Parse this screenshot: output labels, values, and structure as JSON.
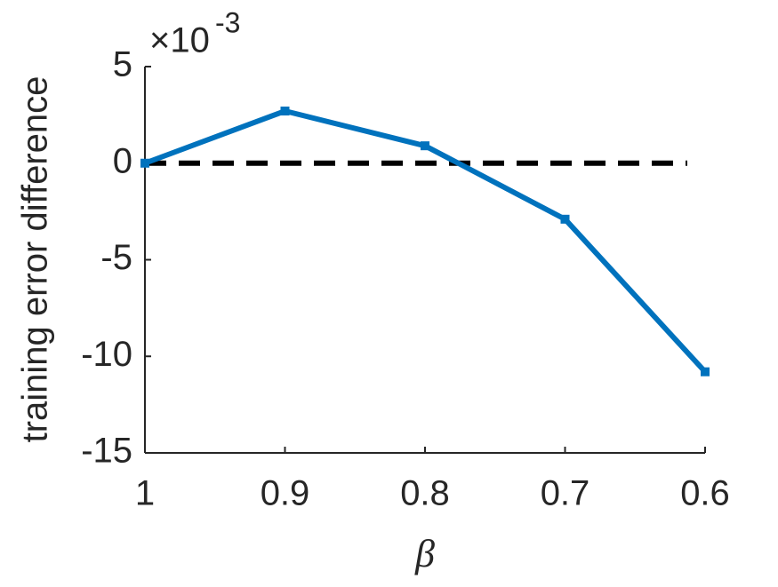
{
  "chart_data": {
    "type": "line",
    "x_label": "β",
    "y_label": "training error difference",
    "y_exponent_base": "×10",
    "y_exponent_power": "-3",
    "x": [
      1,
      0.9,
      0.8,
      0.7,
      0.6
    ],
    "series": [
      {
        "color": "#0072bd",
        "values": [
          0,
          2.7,
          0.9,
          -2.9,
          -10.8
        ]
      }
    ],
    "reference_line": {
      "value": 0,
      "color": "#000000",
      "style": "dashed"
    },
    "xlim": [
      1,
      0.6
    ],
    "xticks": [
      1,
      0.9,
      0.8,
      0.7,
      0.6
    ],
    "ylim": [
      -15,
      5
    ],
    "yticks": [
      5,
      0,
      -5,
      -10,
      -15
    ],
    "grid": false
  }
}
